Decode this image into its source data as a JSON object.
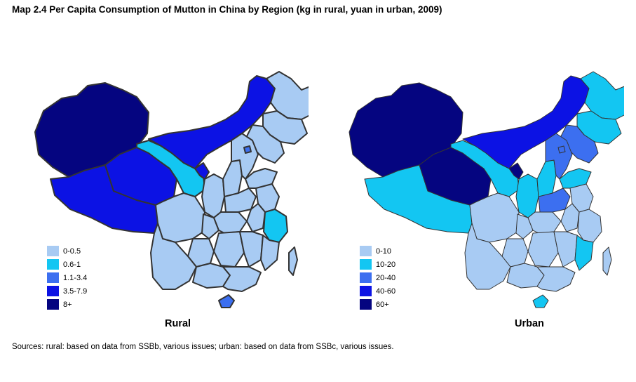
{
  "title": "Map 2.4 Per Capita Consumption of Mutton in China by Region (kg in rural, yuan in urban, 2009)",
  "colors": {
    "c1": "#a8cbf3",
    "c2": "#13c6f2",
    "c3": "#3c6ff0",
    "c4": "#0c12e4",
    "c5": "#050580",
    "border": "#333333"
  },
  "maps": {
    "rural": {
      "caption": "Rural",
      "legend": [
        {
          "label": "0-0.5",
          "color": "#a8cbf3"
        },
        {
          "label": "0.6-1",
          "color": "#13c6f2"
        },
        {
          "label": "1.1-3.4",
          "color": "#3c6ff0"
        },
        {
          "label": "3.5-7.9",
          "color": "#0c12e4"
        },
        {
          "label": "8+",
          "color": "#050580"
        }
      ]
    },
    "urban": {
      "caption": "Urban",
      "legend": [
        {
          "label": "0-10",
          "color": "#a8cbf3"
        },
        {
          "label": "10-20",
          "color": "#13c6f2"
        },
        {
          "label": "20-40",
          "color": "#3c6ff0"
        },
        {
          "label": "40-60",
          "color": "#0c12e4"
        },
        {
          "label": "60+",
          "color": "#050580"
        }
      ]
    }
  },
  "sources": "Sources: rural: based on data from SSBb, various issues; urban: based on data from SSBc, various issues."
}
